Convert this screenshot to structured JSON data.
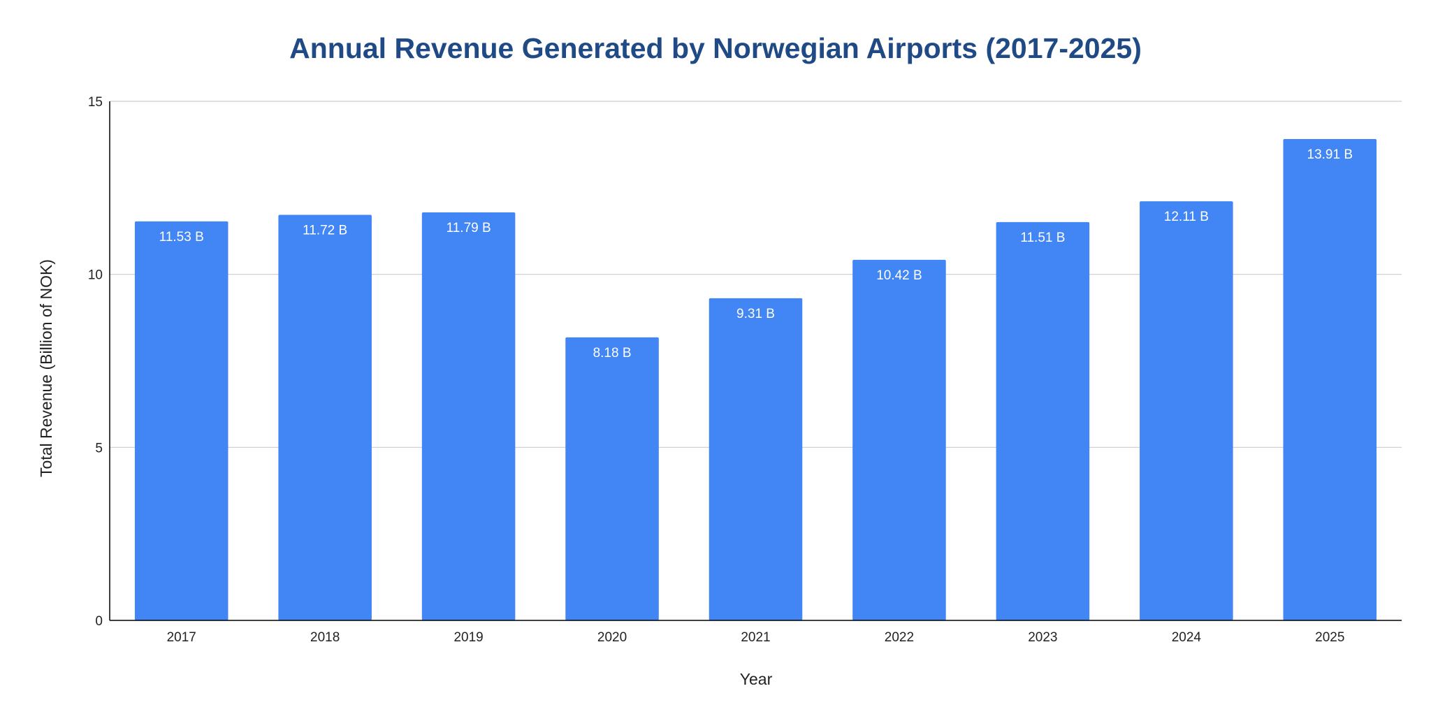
{
  "chart_data": {
    "type": "bar",
    "title": "Annual Revenue Generated by Norwegian Airports (2017-2025)",
    "xlabel": "Year",
    "ylabel": "Total Revenue (Billion of NOK)",
    "categories": [
      "2017",
      "2018",
      "2019",
      "2020",
      "2021",
      "2022",
      "2023",
      "2024",
      "2025"
    ],
    "values": [
      11.53,
      11.72,
      11.79,
      8.18,
      9.31,
      10.42,
      11.51,
      12.11,
      13.91
    ],
    "data_labels": [
      "11.53 B",
      "11.72 B",
      "11.79 B",
      "8.18 B",
      "9.31 B",
      "10.42 B",
      "11.51 B",
      "12.11 B",
      "13.91 B"
    ],
    "ylim": [
      0,
      15
    ],
    "yticks": [
      "0",
      "5",
      "10",
      "15"
    ],
    "grid": true,
    "legend": "none",
    "colors": {
      "bar": "#4285f4",
      "title": "#1f4a86",
      "grid": "#cccccc",
      "axis": "#000000",
      "data_label": "#ffffff"
    }
  }
}
